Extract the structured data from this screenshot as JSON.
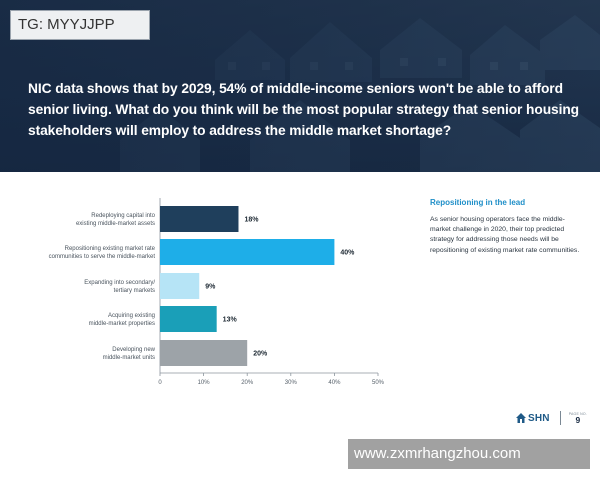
{
  "header": {
    "headline": "NIC data shows that by 2029, 54% of middle-income seniors won't be able to afford senior living. What do you think will be the most popular strategy that senior housing stakeholders will employ to address the middle market shortage?"
  },
  "watermarks": {
    "top": "TG: MYYJJPP",
    "bottom": "www.zxmrhangzhou.com"
  },
  "chart_data": {
    "type": "bar",
    "orientation": "horizontal",
    "title": "",
    "xlabel": "",
    "ylabel": "",
    "xlim": [
      0,
      50
    ],
    "ticks": [
      "0",
      "10%",
      "20%",
      "30%",
      "40%",
      "50%"
    ],
    "tick_values": [
      0,
      10,
      20,
      30,
      40,
      50
    ],
    "grid": false,
    "categories": [
      [
        "Redeploying capital into",
        "existing middle-market assets"
      ],
      [
        "Repositioning existing market rate",
        "communities to serve the middle-market"
      ],
      [
        "Expanding into secondary/",
        "tertiary markets"
      ],
      [
        "Acquiring existing",
        "middle-market properties"
      ],
      [
        "Developing new",
        "middle-market units"
      ]
    ],
    "values": [
      18,
      40,
      9,
      13,
      20
    ],
    "value_labels": [
      "18%",
      "40%",
      "9%",
      "13%",
      "20%"
    ],
    "colors": [
      "#1f3f5c",
      "#1eaee8",
      "#b6e4f6",
      "#1a9fb8",
      "#9da3a8"
    ]
  },
  "sidebar": {
    "title": "Repositioning in the lead",
    "body": "As senior housing operators face the middle-market challenge in 2020, their top predicted strategy for addressing those needs will be repositioning of existing market rate communities."
  },
  "footer": {
    "logo_text": "SHN",
    "page_label": "PAGE NO.",
    "page_number": "9",
    "brand_color": "#1f5a87"
  }
}
